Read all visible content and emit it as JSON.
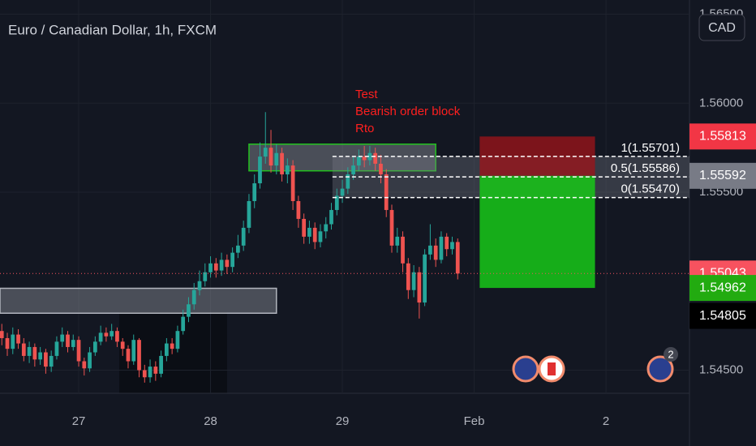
{
  "chart_data": {
    "type": "candlestick",
    "title": "Euro / Canadian Dollar, 1h, FXCM",
    "currency": "CAD",
    "up_color": "#26a69a",
    "down_color": "#ef5350",
    "x": [
      -14,
      -13,
      -12,
      -11,
      -10,
      -9,
      -8,
      -7,
      -6,
      -5,
      -4,
      -3,
      -2,
      -1,
      0,
      1,
      2,
      3,
      4,
      5,
      6,
      7,
      8,
      9,
      10,
      11,
      12,
      13,
      14,
      15,
      16,
      17,
      18,
      19,
      20,
      21,
      22,
      23,
      24,
      25,
      26,
      27,
      28,
      29,
      30,
      31,
      32,
      33,
      34,
      35,
      36,
      37,
      38,
      39,
      40,
      41,
      42,
      43,
      44,
      45,
      46,
      47,
      48,
      49,
      50,
      51,
      52,
      53,
      54,
      55,
      56,
      57,
      58,
      59,
      60,
      61,
      62,
      63,
      64,
      65,
      66,
      67,
      68,
      69
    ],
    "open": [
      1.5472,
      1.5468,
      1.5462,
      1.547,
      1.5465,
      1.5458,
      1.5463,
      1.5456,
      1.546,
      1.5452,
      1.5458,
      1.5466,
      1.547,
      1.5463,
      1.5467,
      1.5455,
      1.5451,
      1.546,
      1.5466,
      1.5471,
      1.5469,
      1.5472,
      1.5466,
      1.5462,
      1.5455,
      1.5467,
      1.545,
      1.5446,
      1.5452,
      1.5448,
      1.5458,
      1.5465,
      1.5462,
      1.5472,
      1.548,
      1.5487,
      1.5495,
      1.55,
      1.5505,
      1.551,
      1.5506,
      1.5512,
      1.5508,
      1.5516,
      1.552,
      1.553,
      1.5545,
      1.5555,
      1.557,
      1.5575,
      1.5565,
      1.5572,
      1.556,
      1.5565,
      1.5545,
      1.5535,
      1.5525,
      1.553,
      1.5522,
      1.5528,
      1.5532,
      1.554,
      1.5548,
      1.5552,
      1.556,
      1.5565,
      1.557,
      1.5568,
      1.5572,
      1.5566,
      1.556,
      1.554,
      1.552,
      1.5525,
      1.551,
      1.5495,
      1.5505,
      1.5488,
      1.5515,
      1.552,
      1.5512,
      1.5525,
      1.5518,
      1.5522
    ],
    "high": [
      1.5476,
      1.5471,
      1.5474,
      1.5473,
      1.5468,
      1.5466,
      1.5465,
      1.5463,
      1.5462,
      1.5461,
      1.5469,
      1.5474,
      1.5472,
      1.547,
      1.5469,
      1.5457,
      1.5463,
      1.5469,
      1.5475,
      1.5474,
      1.5476,
      1.5474,
      1.5468,
      1.5464,
      1.547,
      1.5468,
      1.5453,
      1.5456,
      1.5455,
      1.5461,
      1.5468,
      1.5468,
      1.5475,
      1.5484,
      1.5491,
      1.5499,
      1.5506,
      1.551,
      1.5514,
      1.5513,
      1.5516,
      1.5515,
      1.5519,
      1.5526,
      1.5534,
      1.5549,
      1.556,
      1.5578,
      1.5595,
      1.5585,
      1.5577,
      1.5575,
      1.5569,
      1.5568,
      1.5548,
      1.5538,
      1.5534,
      1.5533,
      1.5532,
      1.5536,
      1.5544,
      1.5552,
      1.5557,
      1.5564,
      1.557,
      1.5574,
      1.5576,
      1.5576,
      1.5575,
      1.5571,
      1.5563,
      1.5543,
      1.553,
      1.5528,
      1.5513,
      1.5509,
      1.5508,
      1.5518,
      1.5532,
      1.5524,
      1.5528,
      1.5527,
      1.5525,
      1.5524
    ],
    "low": [
      1.5464,
      1.5458,
      1.5459,
      1.5462,
      1.5455,
      1.5454,
      1.5452,
      1.5453,
      1.5448,
      1.5449,
      1.5456,
      1.5463,
      1.546,
      1.5461,
      1.5452,
      1.5447,
      1.5449,
      1.5458,
      1.5464,
      1.5466,
      1.5467,
      1.5463,
      1.5458,
      1.5451,
      1.5453,
      1.5446,
      1.5443,
      1.5443,
      1.5444,
      1.5446,
      1.5455,
      1.5459,
      1.546,
      1.547,
      1.5477,
      1.5484,
      1.5492,
      1.5497,
      1.5502,
      1.5502,
      1.5503,
      1.5504,
      1.5505,
      1.5513,
      1.5517,
      1.5527,
      1.5541,
      1.5552,
      1.5566,
      1.5561,
      1.556,
      1.5556,
      1.5555,
      1.554,
      1.553,
      1.5521,
      1.5521,
      1.5518,
      1.5519,
      1.5524,
      1.5529,
      1.5537,
      1.5544,
      1.5549,
      1.5557,
      1.5562,
      1.5564,
      1.5565,
      1.5562,
      1.5555,
      1.5536,
      1.5516,
      1.5516,
      1.5505,
      1.549,
      1.5491,
      1.5479,
      1.5486,
      1.5512,
      1.5508,
      1.551,
      1.5514,
      1.5515,
      1.5501
    ],
    "close": [
      1.5468,
      1.5462,
      1.547,
      1.5465,
      1.5458,
      1.5463,
      1.5456,
      1.546,
      1.5452,
      1.5458,
      1.5466,
      1.547,
      1.5463,
      1.5467,
      1.5455,
      1.5451,
      1.546,
      1.5466,
      1.5471,
      1.5469,
      1.5472,
      1.5466,
      1.5462,
      1.5455,
      1.5467,
      1.545,
      1.5446,
      1.5452,
      1.5448,
      1.5458,
      1.5465,
      1.5462,
      1.5472,
      1.548,
      1.5487,
      1.5495,
      1.55,
      1.5505,
      1.551,
      1.5506,
      1.5512,
      1.5508,
      1.5516,
      1.552,
      1.553,
      1.5545,
      1.5555,
      1.557,
      1.5575,
      1.5565,
      1.5572,
      1.556,
      1.5565,
      1.5545,
      1.5535,
      1.5525,
      1.553,
      1.5522,
      1.5528,
      1.5532,
      1.554,
      1.5548,
      1.5552,
      1.556,
      1.5565,
      1.557,
      1.5568,
      1.5572,
      1.5566,
      1.556,
      1.554,
      1.552,
      1.5525,
      1.551,
      1.5495,
      1.5505,
      1.5488,
      1.5515,
      1.552,
      1.5512,
      1.5525,
      1.5518,
      1.5522,
      1.55043
    ],
    "xlim": [
      -14.33,
      111.2
    ],
    "xticks": [
      {
        "value": 0,
        "label": "27"
      },
      {
        "value": 24,
        "label": "28"
      },
      {
        "value": 48,
        "label": "29"
      },
      {
        "value": 72,
        "label": "Feb"
      },
      {
        "value": 96,
        "label": "2"
      }
    ],
    "ylim": [
      1.5437,
      1.5658
    ],
    "yticks": [
      {
        "value": 1.545,
        "label": "1.54500"
      },
      {
        "value": 1.555,
        "label": "1.55500"
      },
      {
        "value": 1.56,
        "label": "1.56000"
      },
      {
        "value": 1.565,
        "label": "1.56500"
      }
    ],
    "grid": true,
    "price_labels": [
      {
        "value": 1.55813,
        "label": "1.55813",
        "color": "#f23645"
      },
      {
        "value": 1.55592,
        "label": "1.55592",
        "color": "#787b86"
      },
      {
        "value": 1.55043,
        "label": "1.55043",
        "color": "#f7525f",
        "dotted_line": true
      },
      {
        "value": 1.54962,
        "label": "1.54962",
        "color": "#22ab10"
      },
      {
        "value": 1.54805,
        "label": "1.54805",
        "color": "#000000"
      }
    ],
    "fib_levels": {
      "x": [
        46.2,
        111.2
      ],
      "levels": [
        {
          "value": 1.55701,
          "label": "1(1.55701)"
        },
        {
          "value": 1.55586,
          "label": "0.5(1.55586)"
        },
        {
          "value": 1.5547,
          "label": "0(1.55470)"
        }
      ]
    },
    "position": {
      "x": [
        73,
        94
      ],
      "entry": 1.55592,
      "stop": 1.55813,
      "target": 1.54962
    },
    "rectangles": [
      {
        "x": [
          31,
          65
        ],
        "y": [
          1.5562,
          1.5577
        ],
        "border": "#22c21e"
      },
      {
        "x": [
          -14.33,
          36
        ],
        "y": [
          1.5482,
          1.5496
        ],
        "border": "#b2b5be"
      }
    ],
    "annotation": {
      "lines": [
        "Test",
        "Bearish order block",
        "Rto"
      ],
      "color": "#ff1f1f"
    },
    "events_badge": 2
  }
}
